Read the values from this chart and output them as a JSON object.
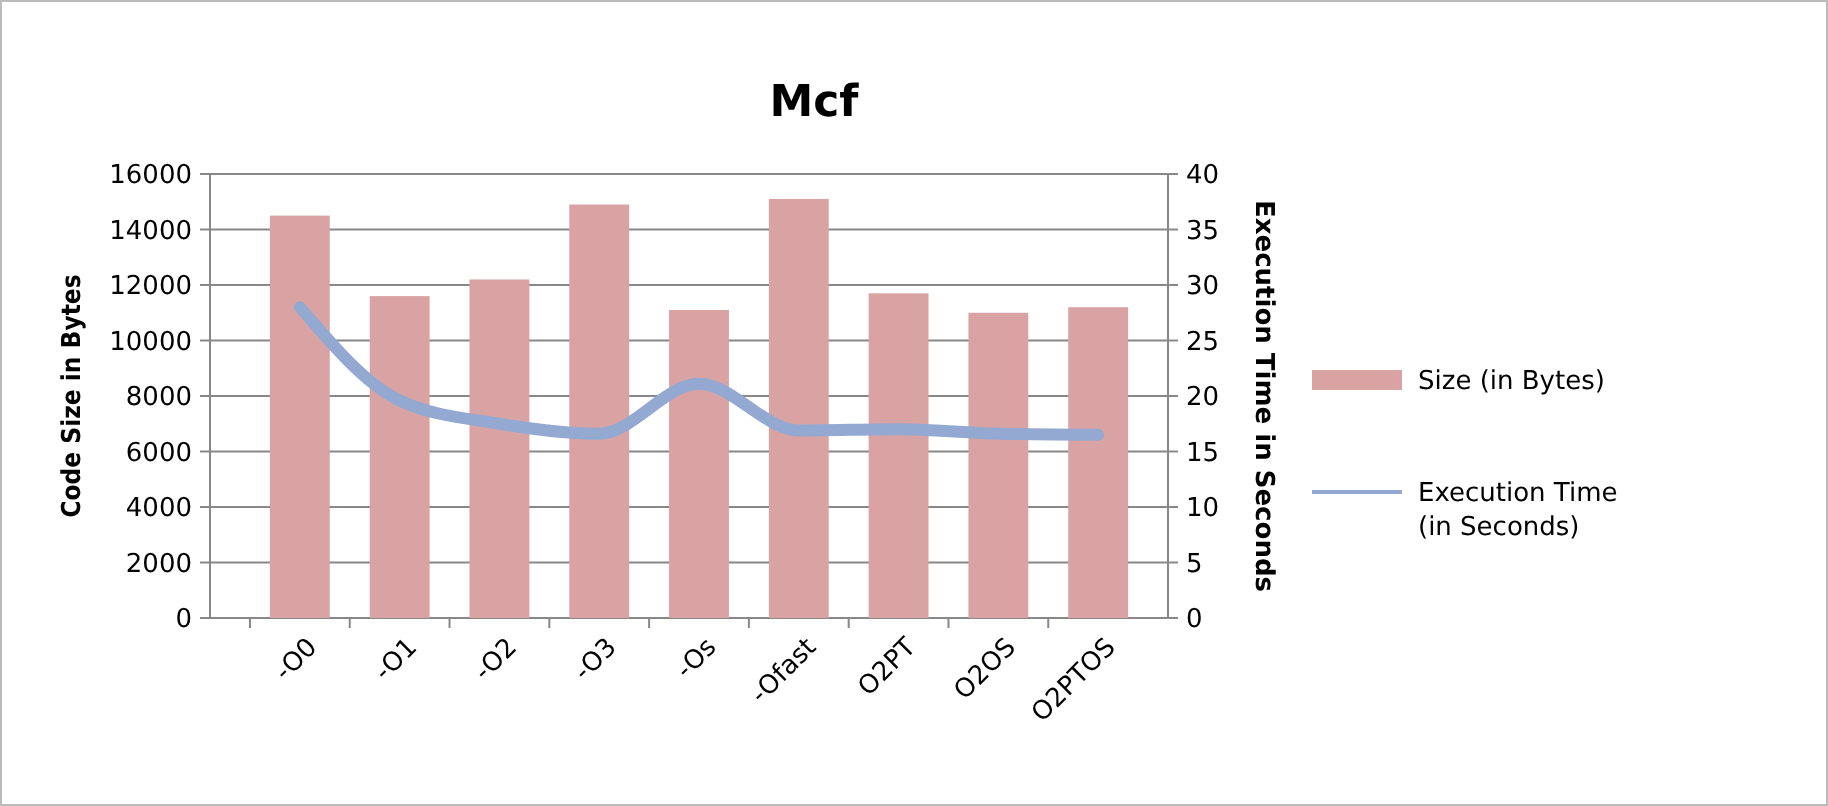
{
  "chart_data": {
    "type": "bar",
    "title": "Mcf",
    "ylabel": "Code Size in Bytes",
    "y2label": "Execution Time in Seconds",
    "categories": [
      "-O0",
      "-O1",
      "-O2",
      "-O3",
      "-Os",
      "-Ofast",
      "O2PT",
      "O2OS",
      "O2PTOS"
    ],
    "series": [
      {
        "name": "Size (in Bytes)",
        "color": "#d9a3a3",
        "values": [
          14500,
          11600,
          12200,
          14900,
          11100,
          15100,
          11700,
          11000,
          11200
        ]
      },
      {
        "name": "Execution Time (in Seconds)",
        "type": "line",
        "axis": "y2",
        "color": "#93a9d1",
        "values": [
          28,
          19.6,
          17.5,
          16.6,
          21.1,
          16.9,
          17,
          16.6,
          16.5
        ]
      }
    ],
    "ylim": [
      0,
      16000
    ],
    "yticks": [
      0,
      2000,
      4000,
      6000,
      8000,
      10000,
      12000,
      14000,
      16000
    ],
    "y2lim": [
      0,
      40
    ],
    "y2ticks": [
      0,
      5,
      10,
      15,
      20,
      25,
      30,
      35,
      40
    ],
    "grid": "y",
    "legend": "right",
    "marker": "none",
    "line_style": "solid"
  }
}
